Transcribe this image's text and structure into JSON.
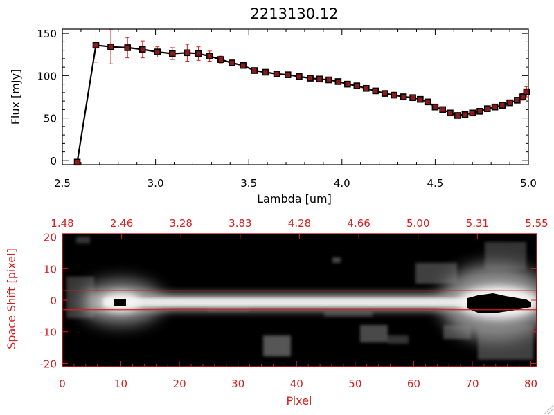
{
  "colors": {
    "ink": "#000000",
    "accent": "#d42020",
    "marker": "#8b1a1a",
    "errorbar": "#d42020"
  },
  "chart_data": [
    {
      "type": "line",
      "title": "2213130.12",
      "xlabel": "Lambda [um]",
      "ylabel": "Flux [mJy]",
      "xlim": [
        2.5,
        5.0
      ],
      "ylim": [
        -5,
        155
      ],
      "xticks": [
        "2.5",
        "3.0",
        "3.5",
        "4.0",
        "4.5",
        "5.0"
      ],
      "yticks": [
        "0",
        "50",
        "100",
        "150"
      ],
      "series": [
        {
          "x": [
            2.58,
            2.68,
            2.76,
            2.85,
            2.93,
            3.01,
            3.09,
            3.17,
            3.23,
            3.29,
            3.35,
            3.41,
            3.47,
            3.53,
            3.59,
            3.65,
            3.71,
            3.77,
            3.83,
            3.88,
            3.93,
            3.98,
            4.03,
            4.08,
            4.13,
            4.18,
            4.23,
            4.28,
            4.33,
            4.38,
            4.42,
            4.46,
            4.5,
            4.54,
            4.58,
            4.62,
            4.66,
            4.7,
            4.74,
            4.78,
            4.82,
            4.86,
            4.9,
            4.94,
            4.97,
            4.99
          ],
          "y": [
            -2,
            136,
            134,
            133,
            131,
            128,
            126,
            127,
            126,
            123,
            119,
            115,
            112,
            106,
            104,
            102,
            101,
            99,
            97,
            96,
            95,
            93,
            90,
            88,
            85,
            82,
            79,
            77,
            75,
            74,
            72,
            69,
            63,
            60,
            56,
            53,
            54,
            56,
            58,
            61,
            63,
            65,
            68,
            71,
            75,
            81
          ],
          "err": [
            0,
            20,
            20,
            12,
            10,
            6,
            7,
            10,
            8,
            6,
            4,
            2,
            2,
            2,
            1,
            1,
            1,
            1,
            1,
            1,
            1,
            1,
            1,
            1,
            1,
            1,
            1,
            1,
            1,
            1,
            1,
            1,
            1,
            1,
            1,
            1,
            1,
            1,
            1,
            1,
            1,
            2,
            2,
            3,
            4,
            6
          ]
        }
      ]
    },
    {
      "type": "heatmap",
      "xlabel": "Pixel",
      "ylabel": "Space Shift [pixel]",
      "xlim": [
        0,
        81
      ],
      "ylim": [
        -21,
        21
      ],
      "xticks": [
        "0",
        "10",
        "20",
        "30",
        "40",
        "50",
        "60",
        "70",
        "80"
      ],
      "yticks": [
        "-20",
        "-10",
        "0",
        "10",
        "20"
      ],
      "top_ticks": [
        "1.48",
        "2.46",
        "3.28",
        "3.83",
        "4.28",
        "4.66",
        "5.00",
        "5.31",
        "5.55"
      ],
      "extraction_band": [
        -3,
        3
      ]
    }
  ]
}
